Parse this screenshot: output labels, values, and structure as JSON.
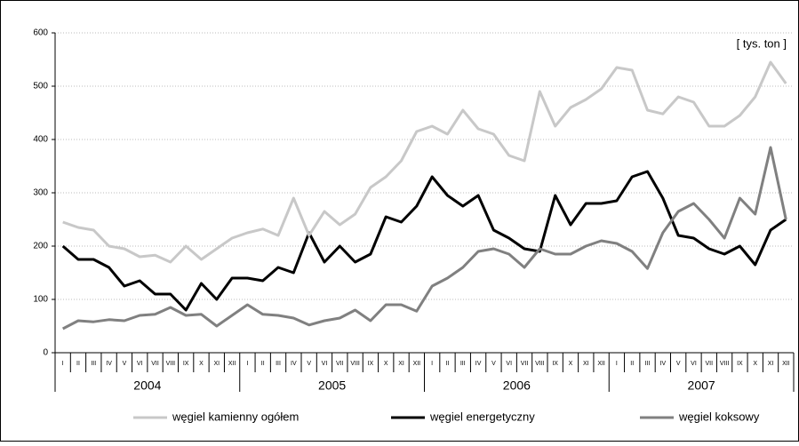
{
  "chart_data": {
    "type": "line",
    "annotation": "[ tys. ton ]",
    "categories": [
      "I",
      "II",
      "III",
      "IV",
      "V",
      "VI",
      "VII",
      "VIII",
      "IX",
      "X",
      "XI",
      "XII",
      "I",
      "II",
      "III",
      "IV",
      "V",
      "VI",
      "VII",
      "VIII",
      "IX",
      "X",
      "XI",
      "XII",
      "I",
      "II",
      "III",
      "IV",
      "V",
      "VI",
      "VII",
      "VIII",
      "IX",
      "X",
      "XI",
      "XII",
      "I",
      "II",
      "III",
      "IV",
      "V",
      "VI",
      "VII",
      "VIII",
      "IX",
      "X",
      "XI",
      "XII"
    ],
    "years": [
      "2004",
      "2005",
      "2006",
      "2007"
    ],
    "series": [
      {
        "name": "węgiel kamienny ogółem",
        "color": "#c8c8c8",
        "values": [
          245,
          235,
          230,
          200,
          195,
          180,
          183,
          170,
          200,
          175,
          195,
          215,
          225,
          232,
          220,
          290,
          220,
          265,
          240,
          260,
          310,
          330,
          360,
          415,
          425,
          410,
          455,
          420,
          410,
          370,
          360,
          490,
          425,
          460,
          475,
          495,
          535,
          530,
          455,
          448,
          480,
          470,
          425,
          425,
          445,
          480,
          545,
          505
        ]
      },
      {
        "name": "węgiel energetyczny",
        "color": "#000000",
        "values": [
          200,
          175,
          175,
          160,
          125,
          135,
          110,
          110,
          80,
          130,
          100,
          140,
          140,
          135,
          160,
          150,
          225,
          170,
          200,
          170,
          185,
          255,
          245,
          275,
          330,
          295,
          275,
          295,
          230,
          215,
          195,
          190,
          295,
          240,
          280,
          280,
          285,
          330,
          340,
          290,
          220,
          215,
          195,
          185,
          200,
          165,
          230,
          250
        ]
      },
      {
        "name": "węgiel koksowy",
        "color": "#808080",
        "values": [
          45,
          60,
          58,
          62,
          60,
          70,
          72,
          85,
          70,
          72,
          50,
          70,
          90,
          72,
          70,
          65,
          52,
          60,
          65,
          80,
          60,
          90,
          90,
          78,
          125,
          140,
          160,
          190,
          195,
          185,
          160,
          195,
          185,
          185,
          200,
          210,
          205,
          190,
          158,
          225,
          265,
          280,
          250,
          215,
          290,
          260,
          385,
          250
        ]
      }
    ],
    "ylim": [
      0,
      600
    ],
    "yticks": [
      0,
      100,
      200,
      300,
      400,
      500,
      600
    ],
    "grid": true
  }
}
